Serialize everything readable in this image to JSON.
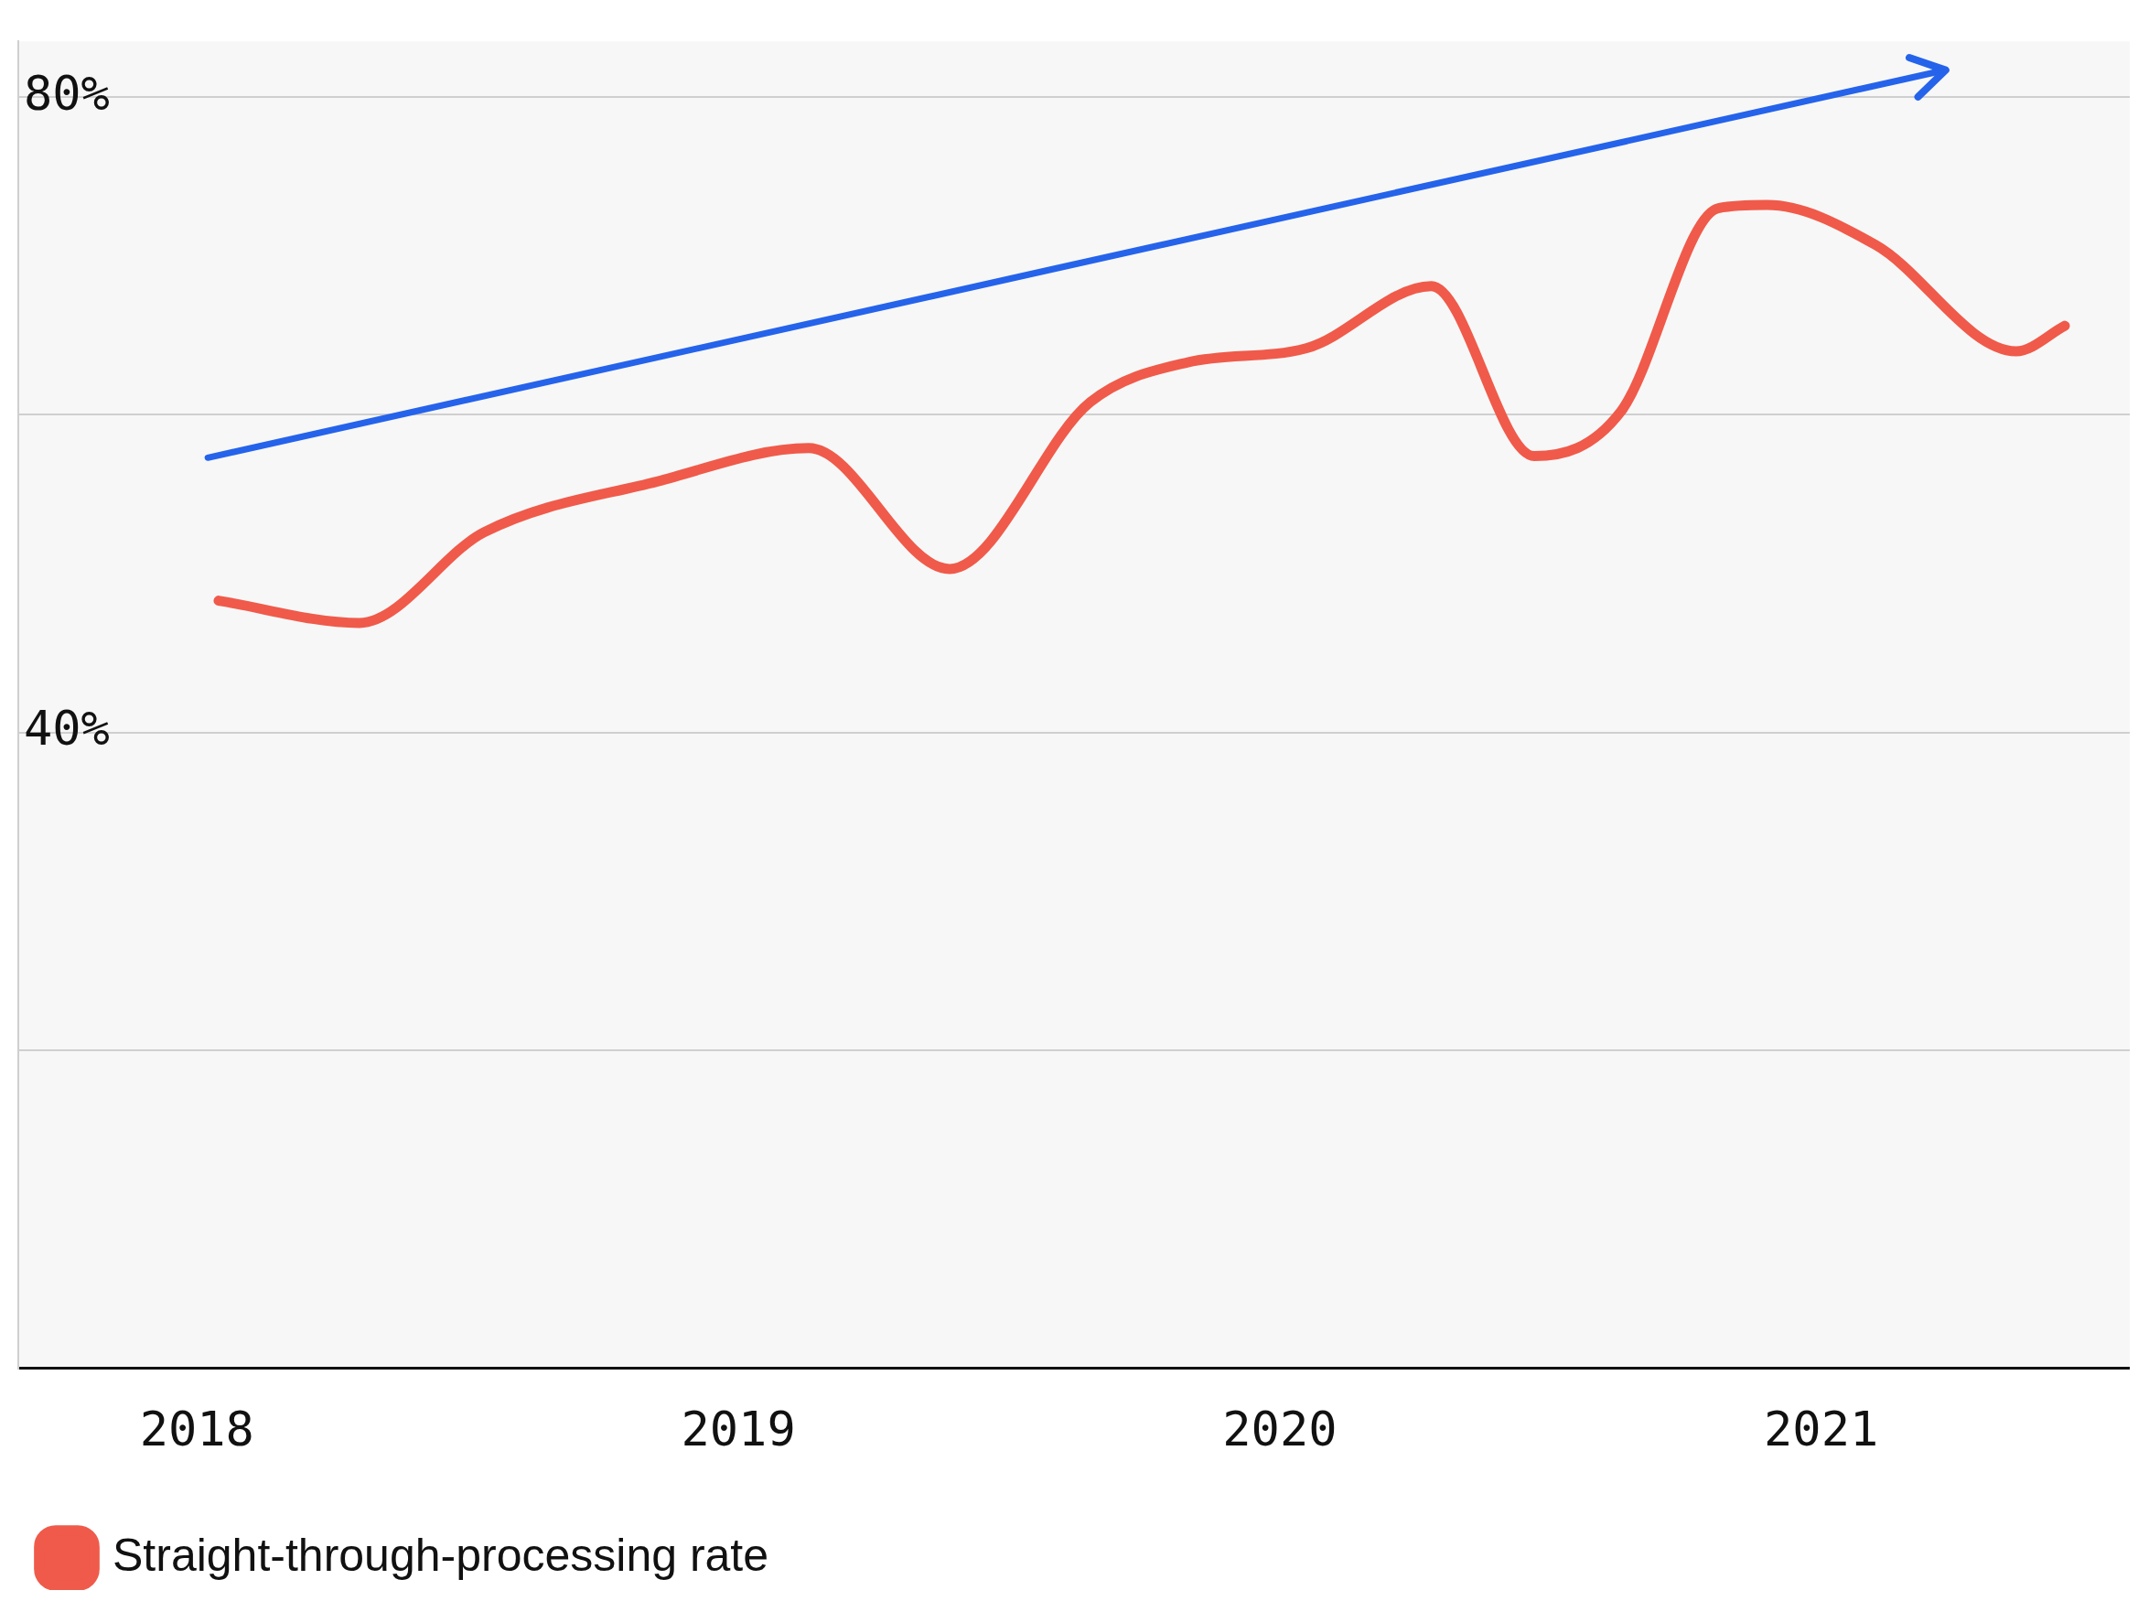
{
  "chart_data": {
    "type": "line",
    "x": [
      2018.04,
      2018.3,
      2018.53,
      2018.85,
      2019.13,
      2019.39,
      2019.65,
      2019.83,
      2020.05,
      2020.28,
      2020.47,
      2020.63,
      2020.81,
      2020.9,
      2021.1,
      2021.36,
      2021.45
    ],
    "series": [
      {
        "name": "Straight-through-processing rate",
        "color": "#f05a4a",
        "values": [
          48.3,
          46.9,
          52.6,
          55.8,
          57.9,
          50.3,
          60.8,
          63.3,
          64.2,
          68.1,
          57.4,
          60.2,
          73.0,
          73.2,
          70.7,
          64.0,
          65.6
        ]
      },
      {
        "type": "line",
        "color": "#2563eb",
        "x": [
          2018.02,
          2021.23
        ],
        "values": [
          57.3,
          81.7
        ]
      }
    ],
    "xlim": [
      2017.67,
      2021.57
    ],
    "xticks": [
      2018,
      2019,
      2020,
      2021
    ],
    "ylim": [
      0,
      83.5
    ],
    "yticks": [
      {
        "value": 0,
        "label": null
      },
      {
        "value": 20,
        "label": null
      },
      {
        "value": 40,
        "label": "40%"
      },
      {
        "value": 60,
        "label": null
      },
      {
        "value": 80,
        "label": "80%"
      }
    ],
    "grid": "y",
    "legend": "bottom left",
    "marker": "none",
    "line_style": "solid"
  }
}
